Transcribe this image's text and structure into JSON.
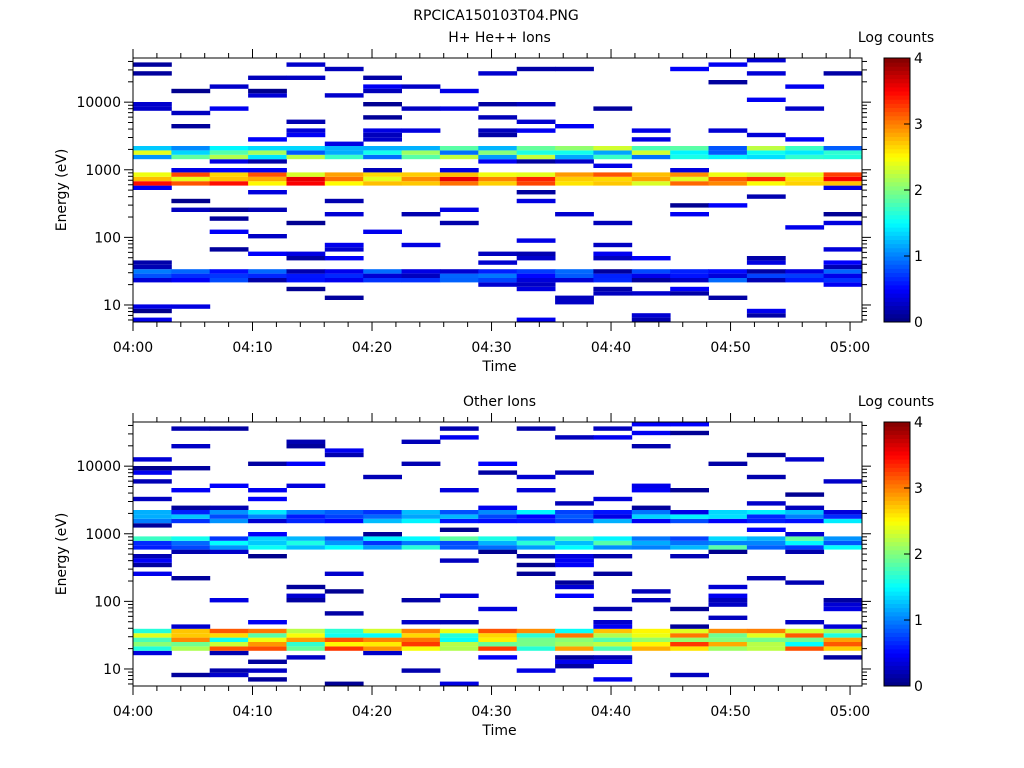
{
  "figure_title": "RPCICA150103T04.PNG",
  "chart_data": [
    {
      "type": "heatmap",
      "title": "H+ He++ Ions",
      "xlabel": "Time",
      "ylabel": "Energy (eV)",
      "yscale": "log",
      "ylim": [
        5.6,
        45000
      ],
      "xlim": [
        "04:00",
        "05:01"
      ],
      "x_ticks": [
        "04:00",
        "04:10",
        "04:20",
        "04:30",
        "04:40",
        "04:50",
        "05:00"
      ],
      "y_ticks": [
        "10",
        "100",
        "1000",
        "10000"
      ],
      "colorbar": {
        "label": "Log counts",
        "range": [
          0,
          4
        ],
        "ticks": [
          "0",
          "1",
          "2",
          "3",
          "4"
        ]
      },
      "time_columns": 19,
      "dominant_bands": [
        {
          "energy_ev": [
            560,
            950
          ],
          "log_counts": [
            2.3,
            3.6
          ]
        },
        {
          "energy_ev": [
            1400,
            2200
          ],
          "log_counts": [
            0.8,
            2.4
          ]
        },
        {
          "energy_ev": [
            22,
            32
          ],
          "log_counts": [
            0.1,
            1.0
          ]
        }
      ]
    },
    {
      "type": "heatmap",
      "title": "Other Ions",
      "xlabel": "Time",
      "ylabel": "Energy (eV)",
      "yscale": "log",
      "ylim": [
        5.6,
        45000
      ],
      "xlim": [
        "04:00",
        "05:01"
      ],
      "x_ticks": [
        "04:00",
        "04:10",
        "04:20",
        "04:30",
        "04:40",
        "04:50",
        "05:00"
      ],
      "y_ticks": [
        "10",
        "100",
        "1000",
        "10000"
      ],
      "colorbar": {
        "label": "Log counts",
        "range": [
          0,
          4
        ],
        "ticks": [
          "0",
          "1",
          "2",
          "3",
          "4"
        ]
      },
      "time_columns": 19,
      "dominant_bands": [
        {
          "energy_ev": [
            20,
            40
          ],
          "log_counts": [
            1.5,
            3.3
          ]
        },
        {
          "energy_ev": [
            600,
            900
          ],
          "log_counts": [
            0.6,
            1.9
          ]
        },
        {
          "energy_ev": [
            1500,
            2100
          ],
          "log_counts": [
            0.3,
            1.5
          ]
        }
      ]
    }
  ]
}
